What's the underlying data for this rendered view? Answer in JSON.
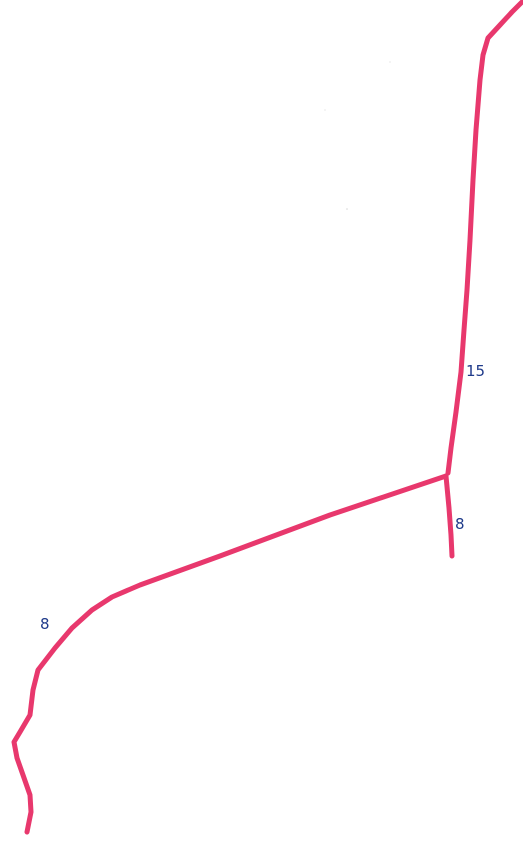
{
  "map": {
    "route_color": "#e8386d",
    "label_color": "#1f3a8a",
    "routes": [
      {
        "id": "main",
        "label": "15"
      },
      {
        "id": "spur",
        "label": "8"
      },
      {
        "id": "branch",
        "label": "8"
      }
    ]
  }
}
